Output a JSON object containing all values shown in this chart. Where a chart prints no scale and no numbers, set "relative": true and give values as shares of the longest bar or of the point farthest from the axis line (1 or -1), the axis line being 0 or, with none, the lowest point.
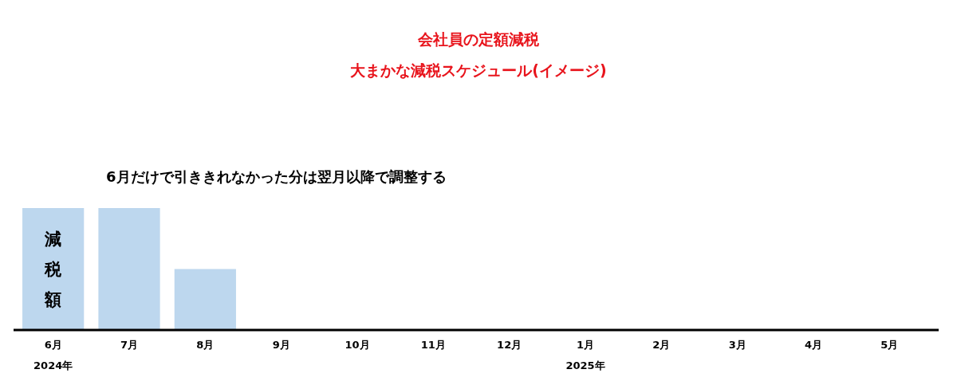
{
  "chart_data": {
    "type": "bar",
    "title": "会社員の定額減税",
    "subtitle": "大まかな減税スケジュール(イメージ)",
    "categories": [
      "6月",
      "7月",
      "8月",
      "9月",
      "10月",
      "11月",
      "12月",
      "1月",
      "2月",
      "3月",
      "4月",
      "5月"
    ],
    "values": [
      1,
      1,
      0.5,
      0,
      0,
      0,
      0,
      0,
      0,
      0,
      0,
      0
    ],
    "color": "#bdd7ee",
    "relative": true,
    "annotations": [
      "6月だけで引ききれなかった分は翌月以降で調整する",
      "減税額",
      "2024年",
      "2025年"
    ]
  }
}
